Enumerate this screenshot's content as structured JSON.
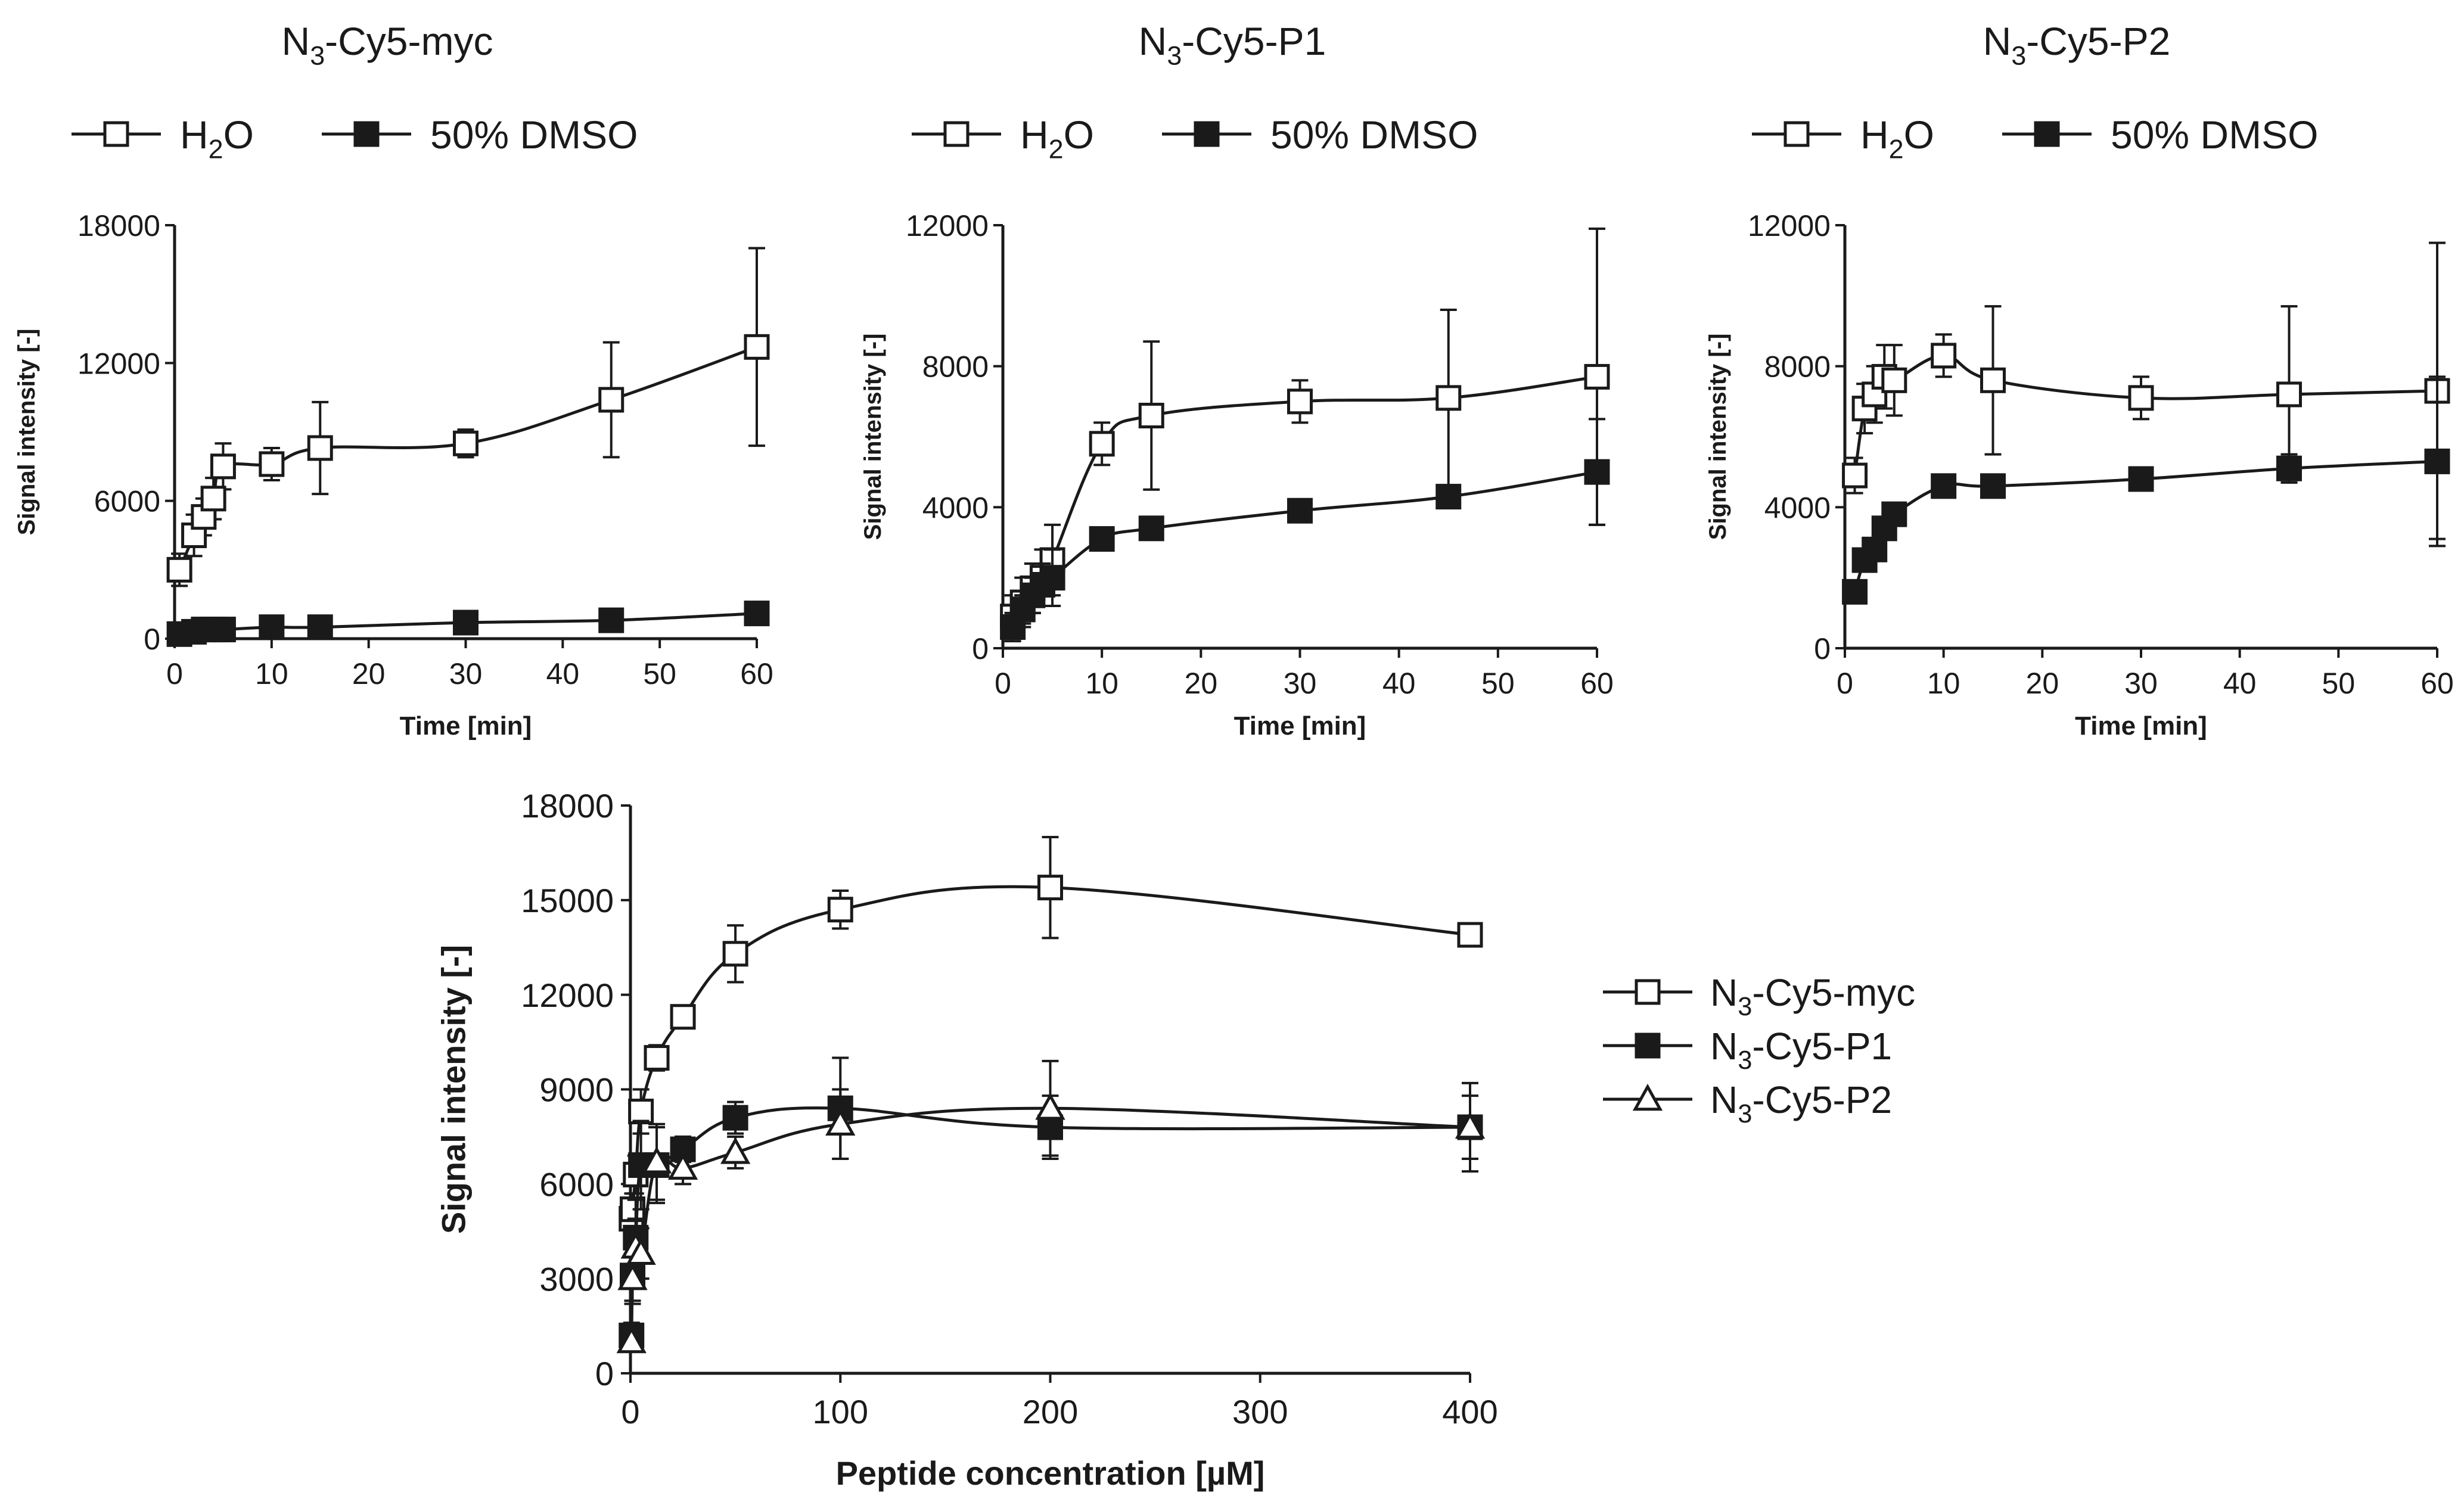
{
  "chart_data": [
    {
      "id": "myc-time",
      "type": "line",
      "title_main": "N",
      "title_sub": "3",
      "title_rest": "-Cy5-myc",
      "xlabel": "Time [min]",
      "ylabel": "Signal intensity [-]",
      "xlim": [
        0,
        60
      ],
      "ylim": [
        0,
        18000
      ],
      "xticks": [
        "0",
        "10",
        "20",
        "30",
        "40",
        "50",
        "60"
      ],
      "yticks": [
        "0",
        "6000",
        "12000",
        "18000"
      ],
      "legend": [
        {
          "name_main": "H",
          "name_sub": "2",
          "name_rest": "O",
          "marker": "square-open"
        },
        {
          "name_main": "50% DMSO",
          "name_sub": "",
          "name_rest": "",
          "marker": "square-filled"
        }
      ],
      "series": [
        {
          "name": "H2O",
          "marker": "square-open",
          "x": [
            0.5,
            2,
            3,
            4,
            5,
            10,
            15,
            30,
            45,
            60
          ],
          "y": [
            3000,
            4500,
            5300,
            6100,
            7500,
            7600,
            8300,
            8500,
            10400,
            12700
          ],
          "err": [
            700,
            900,
            800,
            900,
            1000,
            700,
            2000,
            600,
            2500,
            4300
          ]
        },
        {
          "name": "50% DMSO",
          "marker": "square-filled",
          "x": [
            0.5,
            2,
            3,
            4,
            5,
            10,
            15,
            30,
            45,
            60
          ],
          "y": [
            200,
            300,
            400,
            400,
            400,
            500,
            500,
            700,
            800,
            1100
          ],
          "err": [
            0,
            0,
            0,
            0,
            0,
            0,
            0,
            0,
            0,
            0
          ]
        }
      ]
    },
    {
      "id": "p1-time",
      "type": "line",
      "title_main": "N",
      "title_sub": "3",
      "title_rest": "-Cy5-P1",
      "xlabel": "Time [min]",
      "ylabel": "Signal intensity [-]",
      "xlim": [
        0,
        60
      ],
      "ylim": [
        0,
        12000
      ],
      "xticks": [
        "0",
        "10",
        "20",
        "30",
        "40",
        "50",
        "60"
      ],
      "yticks": [
        "0",
        "4000",
        "8000",
        "12000"
      ],
      "legend": [
        {
          "name_main": "H",
          "name_sub": "2",
          "name_rest": "O",
          "marker": "square-open"
        },
        {
          "name_main": "50% DMSO",
          "name_sub": "",
          "name_rest": "",
          "marker": "square-filled"
        }
      ],
      "series": [
        {
          "name": "H2O",
          "marker": "square-open",
          "x": [
            1,
            2,
            3,
            4,
            5,
            10,
            15,
            30,
            45,
            60
          ],
          "y": [
            900,
            1300,
            1700,
            2000,
            2500,
            5800,
            6600,
            7000,
            7100,
            7700
          ],
          "err": [
            600,
            700,
            700,
            800,
            1000,
            600,
            2100,
            600,
            2500,
            4200
          ]
        },
        {
          "name": "50% DMSO",
          "marker": "square-filled",
          "x": [
            1,
            2,
            3,
            4,
            5,
            10,
            15,
            30,
            45,
            60
          ],
          "y": [
            600,
            1100,
            1500,
            1800,
            2000,
            3100,
            3400,
            3900,
            4300,
            5000
          ],
          "err": [
            400,
            400,
            500,
            600,
            800,
            300,
            300,
            300,
            300,
            1500
          ]
        }
      ]
    },
    {
      "id": "p2-time",
      "type": "line",
      "title_main": "N",
      "title_sub": "3",
      "title_rest": "-Cy5-P2",
      "xlabel": "Time [min]",
      "ylabel": "Signal intensity [-]",
      "xlim": [
        0,
        60
      ],
      "ylim": [
        0,
        12000
      ],
      "xticks": [
        "0",
        "10",
        "20",
        "30",
        "40",
        "50",
        "60"
      ],
      "yticks": [
        "0",
        "4000",
        "8000",
        "12000"
      ],
      "legend": [
        {
          "name_main": "H",
          "name_sub": "2",
          "name_rest": "O",
          "marker": "square-open"
        },
        {
          "name_main": "50% DMSO",
          "name_sub": "",
          "name_rest": "",
          "marker": "square-filled"
        }
      ],
      "series": [
        {
          "name": "H2O",
          "marker": "square-open",
          "x": [
            1,
            2,
            3,
            4,
            5,
            10,
            15,
            30,
            45,
            60
          ],
          "y": [
            4900,
            6800,
            7200,
            7700,
            7600,
            8300,
            7600,
            7100,
            7200,
            7300
          ],
          "err": [
            500,
            700,
            800,
            900,
            1000,
            600,
            2100,
            600,
            2500,
            4200
          ]
        },
        {
          "name": "50% DMSO",
          "marker": "square-filled",
          "x": [
            1,
            2,
            3,
            4,
            5,
            10,
            15,
            30,
            45,
            60
          ],
          "y": [
            1600,
            2500,
            2800,
            3400,
            3800,
            4600,
            4600,
            4800,
            5100,
            5300
          ],
          "err": [
            0,
            0,
            0,
            200,
            200,
            300,
            300,
            300,
            400,
            2400
          ]
        }
      ]
    },
    {
      "id": "concentration",
      "type": "line",
      "title_main": "",
      "title_sub": "",
      "title_rest": "",
      "xlabel": "Peptide concentration [µM]",
      "ylabel": "Signal intensity [-]",
      "xlim": [
        0,
        400
      ],
      "ylim": [
        0,
        18000
      ],
      "xticks": [
        "0",
        "100",
        "200",
        "300",
        "400"
      ],
      "yticks": [
        "0",
        "3000",
        "6000",
        "9000",
        "12000",
        "15000",
        "18000"
      ],
      "legend": [
        {
          "name_main": "N",
          "name_sub": "3",
          "name_rest": "-Cy5-myc",
          "marker": "square-open"
        },
        {
          "name_main": "N",
          "name_sub": "3",
          "name_rest": "-Cy5-P1",
          "marker": "square-filled"
        },
        {
          "name_main": "N",
          "name_sub": "3",
          "name_rest": "-Cy5-P2",
          "marker": "triangle-open"
        }
      ],
      "series": [
        {
          "name": "N3-Cy5-myc",
          "marker": "square-open",
          "x": [
            0.5,
            1,
            2.5,
            5,
            12.5,
            25,
            50,
            100,
            200,
            400
          ],
          "y": [
            4900,
            5200,
            6300,
            8300,
            10000,
            11300,
            13300,
            14700,
            15400,
            13900
          ],
          "err": [
            400,
            500,
            600,
            700,
            400,
            300,
            900,
            600,
            1600,
            300
          ]
        },
        {
          "name": "N3-Cy5-P1",
          "marker": "square-filled",
          "x": [
            0.5,
            1,
            2.5,
            5,
            12.5,
            25,
            50,
            100,
            200,
            400
          ],
          "y": [
            1200,
            3100,
            4300,
            6600,
            6600,
            7100,
            8100,
            8400,
            7800,
            7800
          ],
          "err": [
            400,
            900,
            1200,
            1400,
            1200,
            400,
            500,
            1600,
            1000,
            1400
          ]
        },
        {
          "name": "N3-Cy5-P2",
          "marker": "triangle-open",
          "x": [
            0.5,
            1,
            2.5,
            5,
            12.5,
            25,
            50,
            100,
            200,
            400
          ],
          "y": [
            1000,
            3000,
            4000,
            3800,
            6700,
            6500,
            7000,
            7900,
            8400,
            7800
          ],
          "err": [
            300,
            700,
            900,
            800,
            1200,
            500,
            500,
            1100,
            1500,
            1000
          ]
        }
      ]
    }
  ]
}
